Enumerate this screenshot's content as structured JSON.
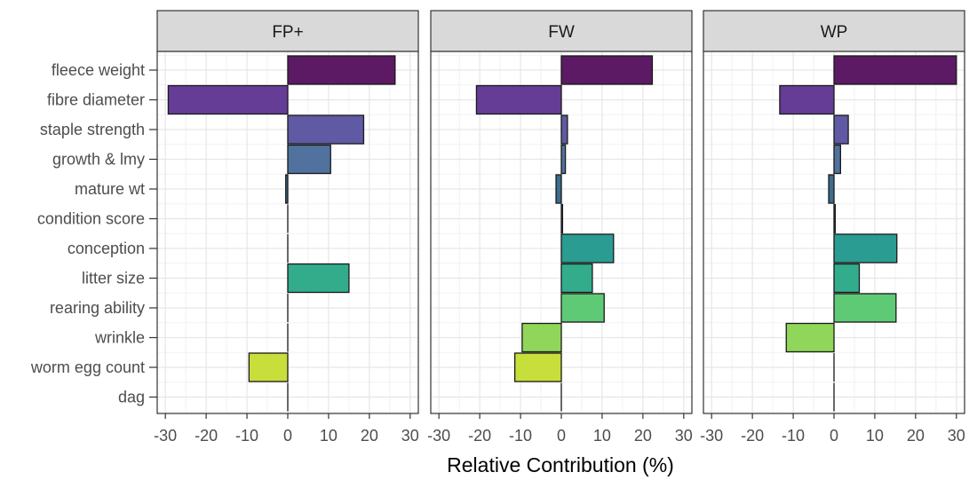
{
  "chart_data": {
    "type": "bar",
    "orientation": "horizontal",
    "xlabel": "Relative Contribution (%)",
    "xlim": [
      -32,
      32
    ],
    "xticks": [
      -30,
      -20,
      -10,
      0,
      10,
      20,
      30
    ],
    "tick_labels": [
      "-30",
      "-20",
      "-10",
      "0",
      "10",
      "20",
      "30"
    ],
    "grid": true,
    "categories": [
      "fleece weight",
      "fibre diameter",
      "staple strength",
      "growth & lmy",
      "mature wt",
      "condition score",
      "conception",
      "litter size",
      "rearing ability",
      "wrinkle",
      "worm egg count",
      "dag"
    ],
    "colors": [
      "#5b1a63",
      "#653c96",
      "#5f5aa3",
      "#51729f",
      "#3d6d8e",
      "#336a86",
      "#2a9c92",
      "#33ac8c",
      "#5fca75",
      "#8fd65a",
      "#c8de3a",
      "#d9e233"
    ],
    "panels": [
      {
        "name": "FP+",
        "values": [
          26.3,
          -29.3,
          18.6,
          10.5,
          -0.5,
          0.0,
          0.0,
          15.0,
          0.0,
          0.0,
          -9.5,
          0.0
        ]
      },
      {
        "name": "FW",
        "values": [
          22.3,
          -20.8,
          1.5,
          1.0,
          -1.3,
          0.3,
          12.8,
          7.6,
          10.5,
          -9.6,
          -11.4,
          0.0
        ]
      },
      {
        "name": "WP",
        "values": [
          30.0,
          -13.3,
          3.5,
          1.6,
          -1.3,
          0.3,
          15.4,
          6.2,
          15.2,
          -11.7,
          0.0,
          0.0
        ]
      }
    ]
  }
}
